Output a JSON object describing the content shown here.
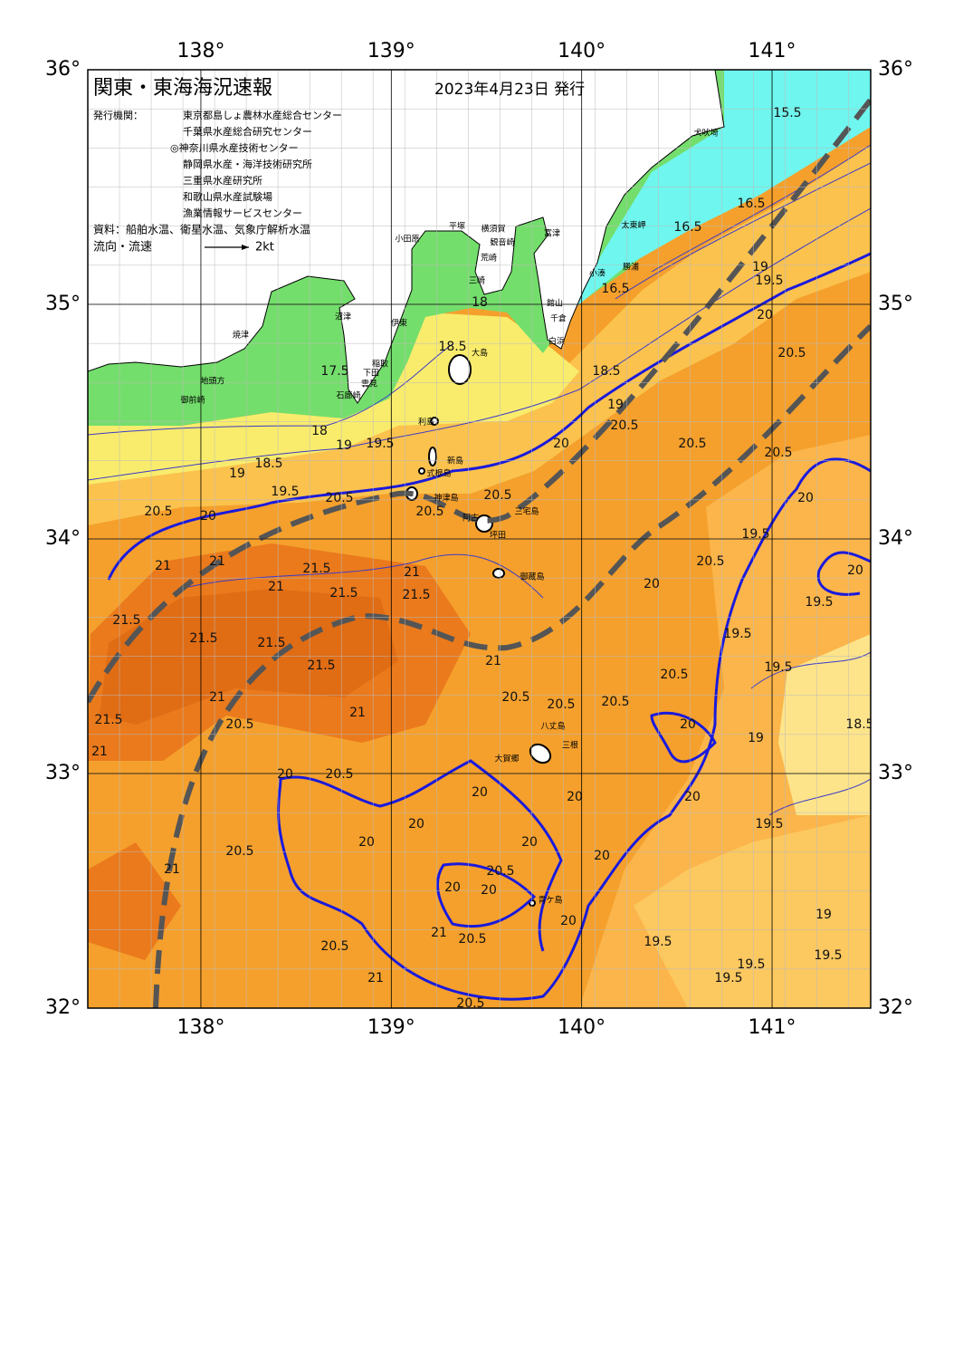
{
  "header": {
    "title": "関東・東海海況速報",
    "date": "2023年4月23日 発行"
  },
  "issuers": {
    "label": "発行機関：",
    "names": [
      "東京都島しょ農林水産総合センター",
      "千葉県水産総合研究センター",
      "◎神奈川県水産技術センター",
      "静岡県水産・海洋技術研究所",
      "三重県水産研究所",
      "和歌山県水産試験場",
      "漁業情報サービスセンター"
    ]
  },
  "sources": "資料：船舶水温、衛星水温、気象庁解析水温",
  "legend": {
    "label": "流向・流速",
    "scale": "2kt"
  },
  "map": {
    "xlim": [
      137.406,
      141.518
    ],
    "ylim": [
      32,
      36
    ],
    "xticks": [
      {
        "value": 138,
        "label": "138°"
      },
      {
        "value": 139,
        "label": "139°"
      },
      {
        "value": 140,
        "label": "140°"
      },
      {
        "value": 141,
        "label": "141°"
      }
    ],
    "yticks": [
      {
        "value": 32,
        "label": "32°"
      },
      {
        "value": 33,
        "label": "33°"
      },
      {
        "value": 34,
        "label": "34°"
      },
      {
        "value": 35,
        "label": "35°"
      },
      {
        "value": 36,
        "label": "36°"
      }
    ]
  },
  "place_names": [
    "犬吠埼",
    "太東岬",
    "勝浦",
    "小湊",
    "富津",
    "館山",
    "千倉",
    "白浜",
    "横須賀",
    "観音崎",
    "荒崎",
    "三崎",
    "平塚",
    "小田原",
    "伊東",
    "沼津",
    "焼津",
    "稲取",
    "下田",
    "雲見",
    "石廊崎",
    "地頭方",
    "御前崎",
    "大島",
    "利島",
    "新島",
    "式根島",
    "神津島",
    "阿古",
    "坪田",
    "三宅島",
    "御蔵島",
    "八丈島",
    "三根",
    "大賀郷",
    "青ケ島"
  ],
  "isotherm_labels": [
    15.5,
    16.5,
    16.5,
    16.5,
    17.5,
    18,
    18.5,
    18,
    19,
    19.5,
    18.5,
    19,
    19.5,
    18.5,
    19,
    20,
    20.5,
    20.5,
    20.5,
    20.5,
    19.5,
    20,
    19,
    20.5,
    20.5,
    20.5,
    20,
    20.5,
    21,
    21,
    21.5,
    21,
    21.5,
    21.5,
    21,
    21.5,
    21.5,
    21.5,
    21.5,
    21,
    20.5,
    20.5,
    20.5,
    20.5,
    20,
    20.5,
    19.5,
    20,
    20,
    19.5,
    19.5,
    19.5,
    20,
    19,
    18.5,
    21.5,
    21,
    20.5,
    21,
    21,
    20.5,
    20,
    20,
    20,
    20,
    20,
    20,
    20.5,
    20,
    20,
    20.5,
    21,
    20,
    19.5,
    19.5,
    19.5,
    19.5,
    19.5,
    19,
    20.5,
    21,
    20.5,
    21,
    20.5,
    20,
    20
  ]
}
